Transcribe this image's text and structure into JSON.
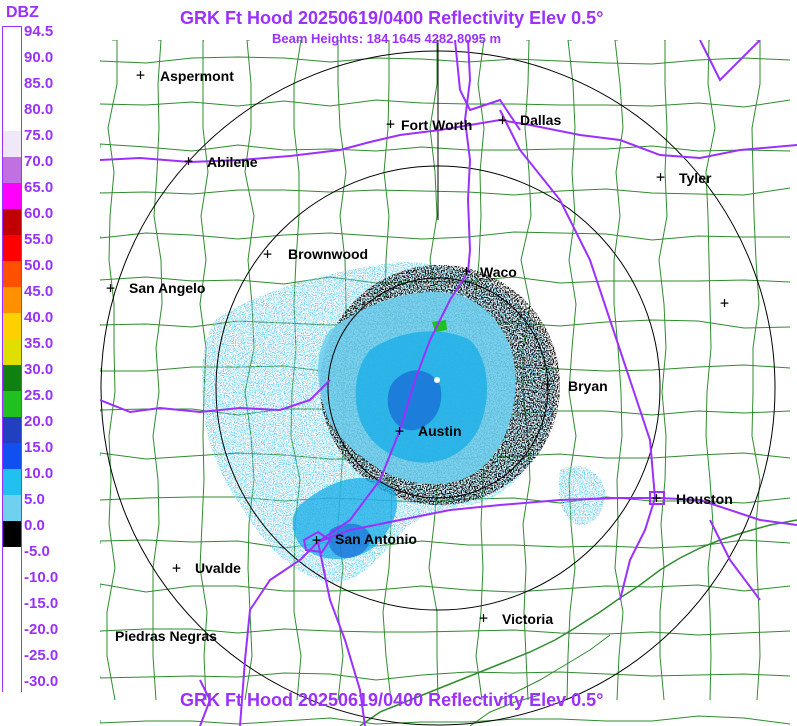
{
  "title": "GRK Ft Hood 20250619/0400 Reflectivity Elev 0.5°",
  "subtitle": "Beam Heights: 184 1645 4282 8095 m",
  "footer": "GRK Ft Hood 20250619/0400 Reflectivity Elev 0.5°",
  "legend": {
    "title": "DBZ",
    "labels": [
      "94.5",
      "90.0",
      "85.0",
      "80.0",
      "75.0",
      "70.0",
      "65.0",
      "60.0",
      "55.0",
      "50.0",
      "45.0",
      "40.0",
      "35.0",
      "30.0",
      "25.0",
      "20.0",
      "15.0",
      "10.0",
      "5.0",
      "0.0",
      "-5.0",
      "-10.0",
      "-15.0",
      "-20.0",
      "-25.0",
      "-30.0"
    ],
    "colors": [
      "#ffffff",
      "#ffffff",
      "#ffffff",
      "#ffffff",
      "#f0e8f8",
      "#c070e0",
      "#ff00ff",
      "#c00000",
      "#ff0000",
      "#ff5000",
      "#ff9000",
      "#ffd000",
      "#e0e000",
      "#108010",
      "#20c020",
      "#2040c0",
      "#1050f0",
      "#20c0f0",
      "#70d0f0",
      "#000000",
      "#ffffff",
      "#ffffff",
      "#ffffff",
      "#ffffff",
      "#ffffff",
      "#ffffff"
    ]
  },
  "cities": [
    {
      "name": "Aspermont",
      "key": "aspermont"
    },
    {
      "name": "Fort Worth",
      "key": "fort-worth"
    },
    {
      "name": "Dallas",
      "key": "dallas"
    },
    {
      "name": "Abilene",
      "key": "abilene"
    },
    {
      "name": "Tyler",
      "key": "tyler"
    },
    {
      "name": "Brownwood",
      "key": "brownwood"
    },
    {
      "name": "Waco",
      "key": "waco"
    },
    {
      "name": "San Angelo",
      "key": "san-angelo"
    },
    {
      "name": "Bryan",
      "key": "bryan"
    },
    {
      "name": "Austin",
      "key": "austin"
    },
    {
      "name": "Houston",
      "key": "houston"
    },
    {
      "name": "San Antonio",
      "key": "san-antonio"
    },
    {
      "name": "Uvalde",
      "key": "uvalde"
    },
    {
      "name": "Victoria",
      "key": "victoria"
    },
    {
      "name": "Piedras Negras",
      "key": "piedras-negras"
    }
  ],
  "colors": {
    "accent": "#9b30ff",
    "county_lines": "#2e8b2e",
    "highways": "#9b30ff",
    "range_rings": "#000000",
    "echo_light": "#70d0f0",
    "echo_mid": "#20b0e8",
    "echo_strong": "#1050d0"
  }
}
